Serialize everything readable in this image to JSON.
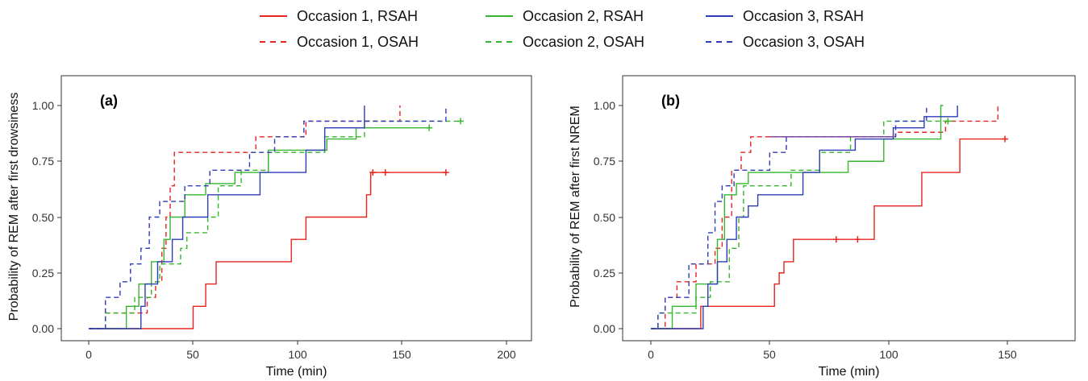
{
  "colors": {
    "occ1": "#e8231f",
    "occ2": "#36b52e",
    "occ3": "#2f3cb8",
    "overlap": "#7a3c9a"
  },
  "legend": [
    {
      "label": "Occasion 1, RSAH",
      "color": "#e8231f",
      "dash": false
    },
    {
      "label": "Occasion 1, OSAH",
      "color": "#e8231f",
      "dash": true
    },
    {
      "label": "Occasion 2, RSAH",
      "color": "#36b52e",
      "dash": false
    },
    {
      "label": "Occasion 2, OSAH",
      "color": "#36b52e",
      "dash": true
    },
    {
      "label": "Occasion 3, RSAH",
      "color": "#2f3cb8",
      "dash": false
    },
    {
      "label": "Occasion 3, OSAH",
      "color": "#2f3cb8",
      "dash": true
    }
  ],
  "chart_data": [
    {
      "type": "line",
      "step": true,
      "panel_label": "(a)",
      "xlabel": "Time (min)",
      "ylabel": "Probability of REM after first drowsiness",
      "xlim": [
        0,
        200
      ],
      "ylim": [
        0,
        1
      ],
      "xticks": [
        "0",
        "50",
        "100",
        "150",
        "200"
      ],
      "yticks": [
        "0.00",
        "0.25",
        "0.50",
        "0.75",
        "1.00"
      ],
      "grid": false,
      "legend_position": "top",
      "series": [
        {
          "name": "Occasion 1, RSAH",
          "color": "#e8231f",
          "dash": false,
          "x": [
            0,
            50,
            56,
            61,
            97,
            104,
            133,
            135
          ],
          "y": [
            0,
            0.1,
            0.2,
            0.3,
            0.4,
            0.5,
            0.6,
            0.7
          ],
          "end": 171,
          "censored": [
            136,
            142,
            171
          ]
        },
        {
          "name": "Occasion 1, OSAH",
          "color": "#e8231f",
          "dash": true,
          "x": [
            0,
            8,
            28,
            32,
            35,
            37,
            39,
            41,
            80,
            104,
            149
          ],
          "y": [
            0,
            0.07,
            0.14,
            0.21,
            0.36,
            0.5,
            0.64,
            0.79,
            0.86,
            0.93,
            1.0
          ],
          "end": 149,
          "censored": []
        },
        {
          "name": "Occasion 2, RSAH",
          "color": "#36b52e",
          "dash": false,
          "x": [
            0,
            18,
            24,
            30,
            36,
            39,
            46,
            56,
            70,
            86,
            114,
            128
          ],
          "y": [
            0,
            0.1,
            0.2,
            0.3,
            0.4,
            0.5,
            0.6,
            0.65,
            0.7,
            0.8,
            0.85,
            0.9
          ],
          "end": 163,
          "censored": [
            163
          ]
        },
        {
          "name": "Occasion 2, OSAH",
          "color": "#36b52e",
          "dash": true,
          "x": [
            0,
            8,
            22,
            30,
            34,
            44,
            47,
            57,
            62,
            73,
            86,
            113,
            132
          ],
          "y": [
            0,
            0.07,
            0.14,
            0.21,
            0.29,
            0.36,
            0.43,
            0.5,
            0.64,
            0.71,
            0.79,
            0.86,
            0.93
          ],
          "end": 178,
          "censored": [
            178
          ]
        },
        {
          "name": "Occasion 3, RSAH",
          "color": "#2f3cb8",
          "dash": false,
          "x": [
            0,
            25,
            27,
            33,
            40,
            45,
            57,
            82,
            104,
            113,
            132
          ],
          "y": [
            0,
            0.1,
            0.2,
            0.3,
            0.4,
            0.5,
            0.6,
            0.7,
            0.8,
            0.9,
            1.0
          ],
          "end": 132,
          "censored": []
        },
        {
          "name": "Occasion 3, OSAH",
          "color": "#2f3cb8",
          "dash": true,
          "x": [
            0,
            8,
            15,
            20,
            25,
            29,
            34,
            46,
            58,
            77,
            89,
            103,
            171
          ],
          "y": [
            0,
            0.14,
            0.21,
            0.29,
            0.36,
            0.5,
            0.57,
            0.64,
            0.71,
            0.79,
            0.86,
            0.93,
            1.0
          ],
          "end": 171,
          "censored": []
        }
      ]
    },
    {
      "type": "line",
      "step": true,
      "panel_label": "(b)",
      "xlabel": "Time (min)",
      "ylabel": "Probability of REM after first NREM",
      "xlim": [
        0,
        150
      ],
      "ylim": [
        0,
        1
      ],
      "xticks": [
        "0",
        "50",
        "100",
        "150"
      ],
      "yticks": [
        "0.00",
        "0.25",
        "0.50",
        "0.75",
        "1.00"
      ],
      "grid": false,
      "legend_position": "top",
      "series": [
        {
          "name": "Occasion 1, RSAH",
          "color": "#e8231f",
          "dash": false,
          "x": [
            0,
            21,
            52,
            54,
            56,
            60,
            86,
            94,
            114,
            130
          ],
          "y": [
            0,
            0.1,
            0.2,
            0.25,
            0.3,
            0.4,
            0.4,
            0.55,
            0.7,
            0.85
          ],
          "end": 149,
          "censored": [
            78,
            87,
            149
          ]
        },
        {
          "name": "Occasion 1, OSAH",
          "color": "#e8231f",
          "dash": true,
          "x": [
            0,
            6,
            11,
            19,
            27,
            30,
            34,
            38,
            42,
            103,
            124,
            146
          ],
          "y": [
            0,
            0.14,
            0.21,
            0.29,
            0.36,
            0.5,
            0.71,
            0.79,
            0.86,
            0.88,
            0.93,
            1.0
          ],
          "end": 146,
          "censored": []
        },
        {
          "name": "Occasion 2, RSAH",
          "color": "#36b52e",
          "dash": false,
          "x": [
            0,
            9,
            19,
            28,
            31,
            36,
            41,
            83,
            98,
            122
          ],
          "y": [
            0,
            0.1,
            0.2,
            0.4,
            0.6,
            0.65,
            0.7,
            0.75,
            0.85,
            1.0
          ],
          "end": 123,
          "censored": []
        },
        {
          "name": "Occasion 2, OSAH",
          "color": "#36b52e",
          "dash": true,
          "x": [
            0,
            3,
            19,
            25,
            33,
            37,
            39,
            59,
            71,
            84,
            98,
            125
          ],
          "y": [
            0,
            0.07,
            0.14,
            0.21,
            0.36,
            0.5,
            0.64,
            0.71,
            0.79,
            0.86,
            0.93,
            0.93
          ],
          "end": 127,
          "censored": [
            125
          ]
        },
        {
          "name": "Occasion 3, RSAH",
          "color": "#2f3cb8",
          "dash": false,
          "x": [
            0,
            22,
            24,
            28,
            32,
            36,
            41,
            45,
            64,
            71,
            86,
            102,
            115,
            129
          ],
          "y": [
            0,
            0.1,
            0.2,
            0.3,
            0.4,
            0.5,
            0.55,
            0.6,
            0.7,
            0.8,
            0.85,
            0.9,
            0.95,
            1.0
          ],
          "end": 129,
          "censored": []
        },
        {
          "name": "Occasion 3, OSAH",
          "color": "#2f3cb8",
          "dash": true,
          "x": [
            0,
            3,
            6,
            16,
            24,
            27,
            30,
            35,
            50,
            57,
            103,
            116
          ],
          "y": [
            0,
            0.07,
            0.14,
            0.29,
            0.43,
            0.57,
            0.64,
            0.71,
            0.79,
            0.86,
            0.93,
            1.0
          ],
          "end": 116,
          "censored": []
        },
        {
          "name": "",
          "color": "#7a3c9a",
          "dash": false,
          "x": [
            50,
            102
          ],
          "y": [
            0.86,
            0.88
          ],
          "end": 102,
          "censored": []
        }
      ]
    }
  ]
}
